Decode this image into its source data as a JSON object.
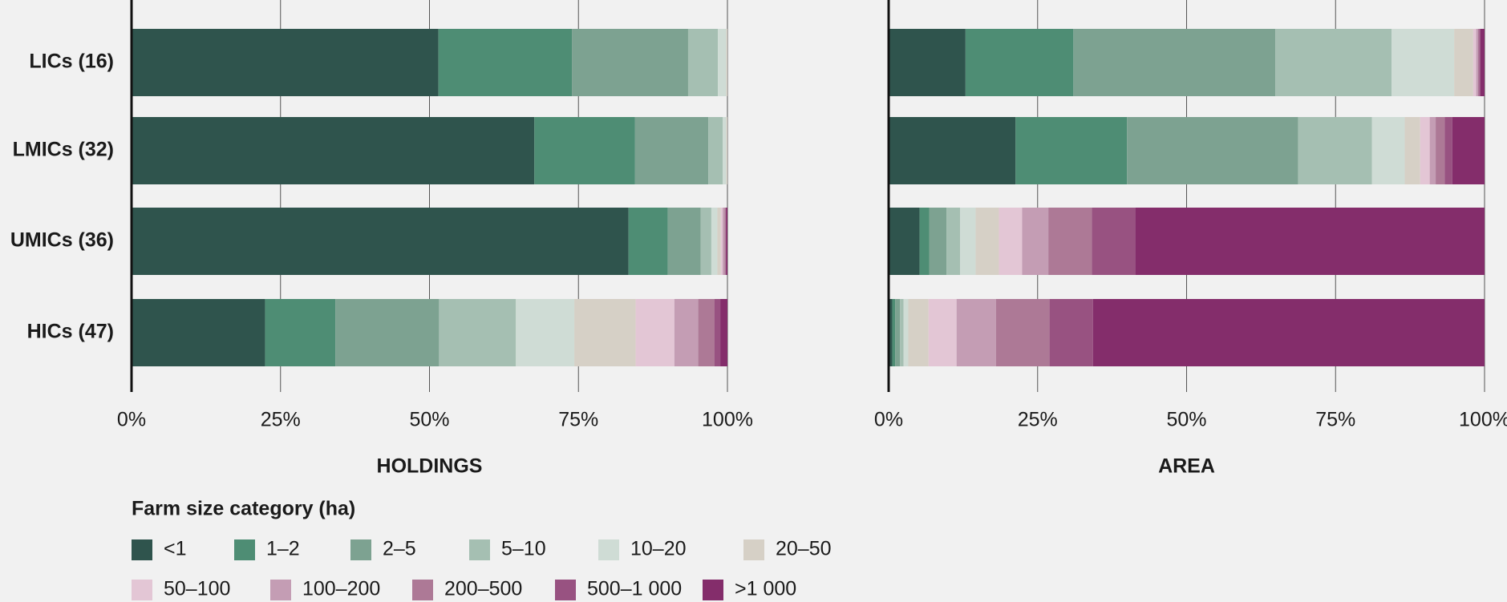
{
  "chart_data": [
    {
      "type": "bar",
      "stacked": true,
      "orientation": "horizontal",
      "title": "HOLDINGS",
      "categories": [
        "LICs (16)",
        "LMICs (32)",
        "UMICs (36)",
        "HICs (47)"
      ],
      "xlim": [
        0,
        100
      ],
      "xticks": [
        {
          "value": 0,
          "label": "0%"
        },
        {
          "value": 25,
          "label": "25%"
        },
        {
          "value": 50,
          "label": "50%"
        },
        {
          "value": 75,
          "label": "75%"
        },
        {
          "value": 100,
          "label": "100%"
        }
      ],
      "grid": true,
      "legend_title": "Farm size category (ha)",
      "series": [
        {
          "name": "<1",
          "color": "#2f544d",
          "values": [
            51.5,
            67.6,
            83.4,
            22.4
          ]
        },
        {
          "name": "1–2",
          "color": "#4e8d74",
          "values": [
            22.4,
            16.9,
            6.6,
            11.8
          ]
        },
        {
          "name": "2–5",
          "color": "#7da291",
          "values": [
            19.5,
            12.3,
            5.5,
            17.4
          ]
        },
        {
          "name": "5–10",
          "color": "#a5bfb2",
          "values": [
            5.0,
            2.4,
            1.8,
            12.9
          ]
        },
        {
          "name": "10–20",
          "color": "#cfdcd5",
          "values": [
            1.4,
            0.6,
            1.0,
            9.8
          ]
        },
        {
          "name": "20–50",
          "color": "#d6d0c6",
          "values": [
            0.2,
            0.2,
            0.6,
            10.3
          ]
        },
        {
          "name": "50–100",
          "color": "#e3c6d5",
          "values": [
            0,
            0,
            0.3,
            6.5
          ]
        },
        {
          "name": "100–200",
          "color": "#c49db4",
          "values": [
            0,
            0,
            0.3,
            4.0
          ]
        },
        {
          "name": "200–500",
          "color": "#ad7996",
          "values": [
            0,
            0,
            0.2,
            2.7
          ]
        },
        {
          "name": "500–1 000",
          "color": "#985281",
          "values": [
            0,
            0,
            0.1,
            1.0
          ]
        },
        {
          "name": ">1 000",
          "color": "#842d6b",
          "values": [
            0,
            0,
            0.2,
            1.2
          ]
        }
      ]
    },
    {
      "type": "bar",
      "stacked": true,
      "orientation": "horizontal",
      "title": "AREA",
      "xlim": [
        0,
        100
      ],
      "xticks": [
        {
          "value": 0,
          "label": "0%"
        },
        {
          "value": 25,
          "label": "25%"
        },
        {
          "value": 50,
          "label": "50%"
        },
        {
          "value": 75,
          "label": "75%"
        },
        {
          "value": 100,
          "label": "100%"
        }
      ],
      "grid": true,
      "series": [
        {
          "values": [
            12.9,
            21.3,
            5.2,
            0.6
          ]
        },
        {
          "values": [
            18.1,
            18.7,
            1.6,
            0.5
          ]
        },
        {
          "values": [
            33.9,
            28.7,
            2.9,
            0.8
          ]
        },
        {
          "values": [
            19.5,
            12.4,
            2.3,
            0.6
          ]
        },
        {
          "values": [
            10.5,
            5.5,
            2.6,
            0.8
          ]
        },
        {
          "values": [
            3.2,
            2.6,
            3.9,
            3.4
          ]
        },
        {
          "values": [
            0.5,
            1.6,
            3.9,
            4.7
          ]
        },
        {
          "values": [
            0.3,
            1.0,
            4.4,
            6.6
          ]
        },
        {
          "values": [
            0.2,
            1.5,
            7.3,
            9.0
          ]
        },
        {
          "values": [
            0.2,
            1.3,
            7.3,
            7.3
          ]
        },
        {
          "values": [
            0.7,
            5.4,
            58.6,
            65.7
          ]
        }
      ]
    }
  ]
}
